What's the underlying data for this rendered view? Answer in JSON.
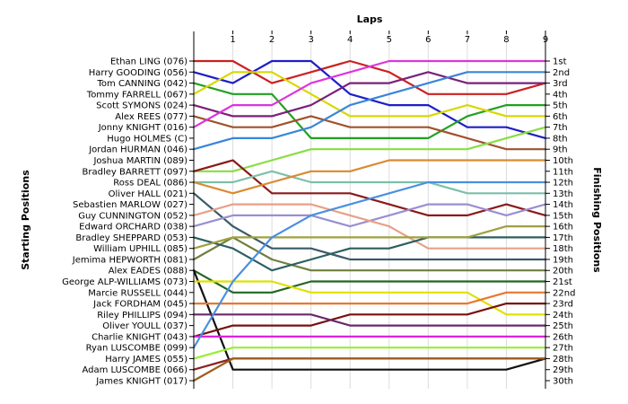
{
  "chart_data": {
    "type": "line",
    "title": "",
    "xlabel": "Laps",
    "ylabel_left": "Starting Positions",
    "ylabel_right": "Finishing Positions",
    "x": [
      0,
      1,
      2,
      3,
      4,
      5,
      6,
      7,
      8,
      9
    ],
    "x_tick_labels": [
      "1",
      "2",
      "3",
      "4",
      "5",
      "6",
      "7",
      "8",
      "9"
    ],
    "xlim": [
      0,
      9
    ],
    "ylim": [
      1,
      30
    ],
    "y_inverted": true,
    "grid": "vertical",
    "starting_labels": [
      "Ethan LING (076)",
      "Harry GOODING (056)",
      "Tom CANNING (042)",
      "Tommy FARRELL (067)",
      "Scott SYMONS (024)",
      "Alex REES (077)",
      "Jonny KNIGHT (016)",
      "Hugo HOLMES (C)",
      "Jordan HURMAN (046)",
      "Joshua MARTIN (089)",
      "Bradley BARRETT (097)",
      "Ross DEAL (086)",
      "Oliver HALL (021)",
      "Sebastien MARLOW (027)",
      "Guy CUNNINGTON (052)",
      "Edward ORCHARD (038)",
      "Bradley SHEPPARD (053)",
      "William UPHILL (085)",
      "Jemima HEPWORTH (081)",
      "Alex EADES (088)",
      "George ALP-WILLIAMS (073)",
      "Marcie RUSSELL (044)",
      "Jack FORDHAM (045)",
      "Riley PHILLIPS (094)",
      "Oliver YOULL (037)",
      "Charlie KNIGHT (043)",
      "Ryan LUSCOMBE (099)",
      "Harry JAMES (055)",
      "Adam LUSCOMBE (066)",
      "James KNIGHT (017)"
    ],
    "finishing_labels": [
      "1st",
      "2nd",
      "3rd",
      "4th",
      "5th",
      "6th",
      "7th",
      "8th",
      "9th",
      "10th",
      "11th",
      "12th",
      "13th",
      "14th",
      "15th",
      "16th",
      "17th",
      "18th",
      "19th",
      "20th",
      "21st",
      "22nd",
      "23rd",
      "24th",
      "25th",
      "26th",
      "27th",
      "28th",
      "29th",
      "30th"
    ],
    "series": [
      {
        "color": "#cc2020",
        "values": [
          1,
          1,
          3,
          2,
          1,
          2,
          4,
          4,
          4,
          3
        ]
      },
      {
        "color": "#1e1ec8",
        "values": [
          2,
          3,
          1,
          1,
          4,
          5,
          5,
          7,
          7,
          8
        ]
      },
      {
        "color": "#22a022",
        "values": [
          3,
          4,
          4,
          8,
          8,
          8,
          8,
          6,
          5,
          5
        ]
      },
      {
        "color": "#d8d800",
        "values": [
          4,
          2,
          2,
          4,
          6,
          6,
          6,
          5,
          6,
          6
        ]
      },
      {
        "color": "#7a207a",
        "values": [
          5,
          6,
          6,
          5,
          3,
          3,
          2,
          3,
          3,
          3
        ]
      },
      {
        "color": "#a0522d",
        "values": [
          6,
          7,
          7,
          6,
          7,
          7,
          7,
          8,
          9,
          9
        ]
      },
      {
        "color": "#dd33dd",
        "values": [
          7,
          5,
          5,
          3,
          2,
          1,
          1,
          1,
          1,
          1
        ]
      },
      {
        "color": "#3a86d8",
        "values": [
          9,
          8,
          8,
          7,
          5,
          4,
          3,
          2,
          2,
          2
        ]
      },
      {
        "color": "#88dd44",
        "values": [
          11,
          11,
          10,
          9,
          9,
          9,
          9,
          9,
          8,
          7
        ]
      },
      {
        "color": "#8b1a1a",
        "values": [
          11,
          10,
          13,
          13,
          13,
          14,
          15,
          15,
          14,
          15
        ]
      },
      {
        "color": "#7cbfa8",
        "values": [
          12,
          12,
          11,
          12,
          12,
          12,
          12,
          13,
          13,
          13
        ]
      },
      {
        "color": "#d98a2e",
        "values": [
          12,
          13,
          12,
          11,
          11,
          10,
          10,
          10,
          10,
          10
        ]
      },
      {
        "color": "#3a5a6a",
        "values": [
          13,
          16,
          18,
          18,
          19,
          19,
          19,
          19,
          19,
          19
        ]
      },
      {
        "color": "#9a8fd0",
        "values": [
          16,
          15,
          15,
          15,
          16,
          15,
          14,
          14,
          15,
          14
        ]
      },
      {
        "color": "#e8a088",
        "values": [
          15,
          14,
          14,
          14,
          15,
          16,
          18,
          18,
          18,
          18
        ]
      },
      {
        "color": "#6f7f3f",
        "values": [
          19,
          17,
          19,
          20,
          20,
          20,
          20,
          20,
          20,
          20
        ]
      },
      {
        "color": "#2d5f5f",
        "values": [
          17,
          18,
          20,
          19,
          18,
          18,
          17,
          17,
          17,
          17
        ]
      },
      {
        "color": "#a0a040",
        "values": [
          18,
          17,
          17,
          17,
          17,
          17,
          17,
          17,
          16,
          16
        ]
      },
      {
        "color": "#226622",
        "values": [
          20,
          22,
          22,
          21,
          21,
          21,
          21,
          21,
          21,
          21
        ]
      },
      {
        "color": "#111111",
        "values": [
          20,
          29,
          29,
          29,
          29,
          29,
          29,
          29,
          29,
          28
        ]
      },
      {
        "color": "#e0e000",
        "values": [
          21,
          21,
          21,
          22,
          22,
          22,
          22,
          22,
          24,
          24
        ]
      },
      {
        "color": "#e8782e",
        "values": [
          23,
          23,
          23,
          23,
          23,
          23,
          23,
          23,
          22,
          22
        ]
      },
      {
        "color": "#771111",
        "values": [
          26,
          25,
          25,
          25,
          24,
          24,
          24,
          24,
          23,
          23
        ]
      },
      {
        "color": "#6a2a6a",
        "values": [
          24,
          24,
          24,
          24,
          25,
          25,
          25,
          25,
          25,
          25
        ]
      },
      {
        "color": "#dd22dd",
        "values": [
          26,
          26,
          26,
          26,
          26,
          26,
          26,
          26,
          26,
          26
        ]
      },
      {
        "color": "#4a90e0",
        "values": [
          27,
          21,
          17,
          15,
          14,
          13,
          12,
          12,
          12,
          12
        ]
      },
      {
        "color": "#99ee33",
        "values": [
          28,
          27,
          27,
          27,
          27,
          27,
          27,
          27,
          27,
          27
        ]
      },
      {
        "color": "#8b2222",
        "values": [
          29,
          28,
          28,
          28,
          28,
          28,
          28,
          28,
          28,
          28
        ]
      },
      {
        "color": "#a05a1a",
        "values": [
          30,
          28,
          28,
          28,
          28,
          28,
          28,
          28,
          28,
          28
        ]
      }
    ]
  }
}
